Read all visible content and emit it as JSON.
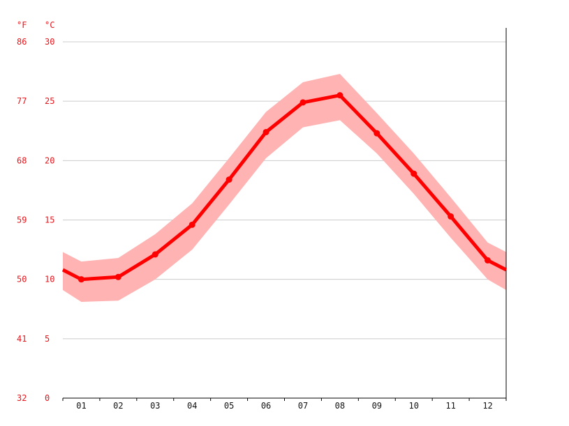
{
  "chart_data": {
    "type": "line",
    "title": "",
    "unit_labels": {
      "fahrenheit": "°F",
      "celsius": "°C"
    },
    "categories": [
      "01",
      "02",
      "03",
      "04",
      "05",
      "06",
      "07",
      "08",
      "09",
      "10",
      "11",
      "12"
    ],
    "series": [
      {
        "name": "",
        "values": [
          10.0,
          10.2,
          12.1,
          14.6,
          18.4,
          22.4,
          24.9,
          25.5,
          22.3,
          18.9,
          15.3,
          11.6
        ],
        "color": "#ff0000"
      }
    ],
    "band": {
      "lower": [
        8.1,
        8.2,
        10.0,
        12.5,
        16.3,
        20.2,
        22.8,
        23.4,
        20.6,
        17.2,
        13.5,
        10.0
      ],
      "upper": [
        11.5,
        11.8,
        13.8,
        16.4,
        20.2,
        24.1,
        26.6,
        27.3,
        24.0,
        20.6,
        16.9,
        13.1
      ],
      "color": "#ffb3b3"
    },
    "edge_values": {
      "start": 10.8,
      "end": 10.8
    },
    "edge_band": {
      "start": [
        9.1,
        12.3
      ],
      "end": [
        9.1,
        12.3
      ]
    },
    "ylim": [
      0,
      30
    ],
    "y_ticks_c": [
      "0",
      "5",
      "10",
      "15",
      "20",
      "25",
      "30"
    ],
    "y_ticks_f": [
      "32",
      "41",
      "50",
      "59",
      "68",
      "77",
      "86"
    ],
    "grid": true,
    "colors": {
      "line": "#ff0000",
      "band": "#ffb3b3",
      "axis_text": "#e8141b",
      "grid": "#cccccc",
      "axis": "#000000"
    }
  }
}
